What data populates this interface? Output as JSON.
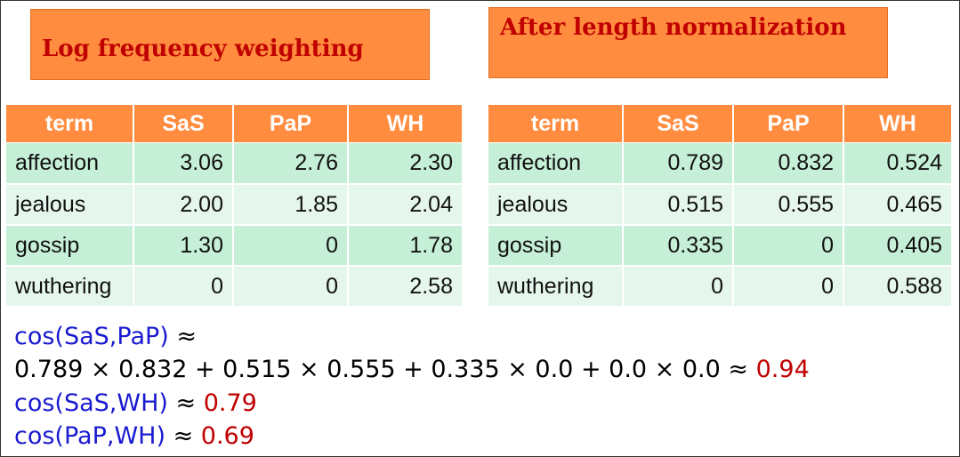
{
  "left": {
    "title": "Log frequency weighting",
    "table": {
      "header": [
        "term",
        "SaS",
        "PaP",
        "WH"
      ],
      "rows": [
        [
          "affection",
          "3.06",
          "2.76",
          "2.30"
        ],
        [
          "jealous",
          "2.00",
          "1.85",
          "2.04"
        ],
        [
          "gossip",
          "1.30",
          "0",
          "1.78"
        ],
        [
          "wuthering",
          "0",
          "0",
          "2.58"
        ]
      ]
    }
  },
  "right": {
    "title": "After length normalization",
    "table": {
      "header": [
        "term",
        "SaS",
        "PaP",
        "WH"
      ],
      "rows": [
        [
          "affection",
          "0.789",
          "0.832",
          "0.524"
        ],
        [
          "jealous",
          "0.515",
          "0.555",
          "0.465"
        ],
        [
          "gossip",
          "0.335",
          "0",
          "0.405"
        ],
        [
          "wuthering",
          "0",
          "0",
          "0.588"
        ]
      ]
    }
  },
  "similarity": [
    {
      "expr": "cos(SaS,PaP)",
      "op": "≈"
    },
    {
      "calc": "0.789 × 0.832 + 0.515 × 0.555 + 0.335 × 0.0 + 0.0 × 0.0 ≈",
      "result": "0.94"
    },
    {
      "expr": "cos(SaS,WH)",
      "op": "≈",
      "result": "0.79"
    },
    {
      "expr": "cos(PaP,WH)",
      "op": "≈",
      "result": "0.69"
    }
  ]
}
